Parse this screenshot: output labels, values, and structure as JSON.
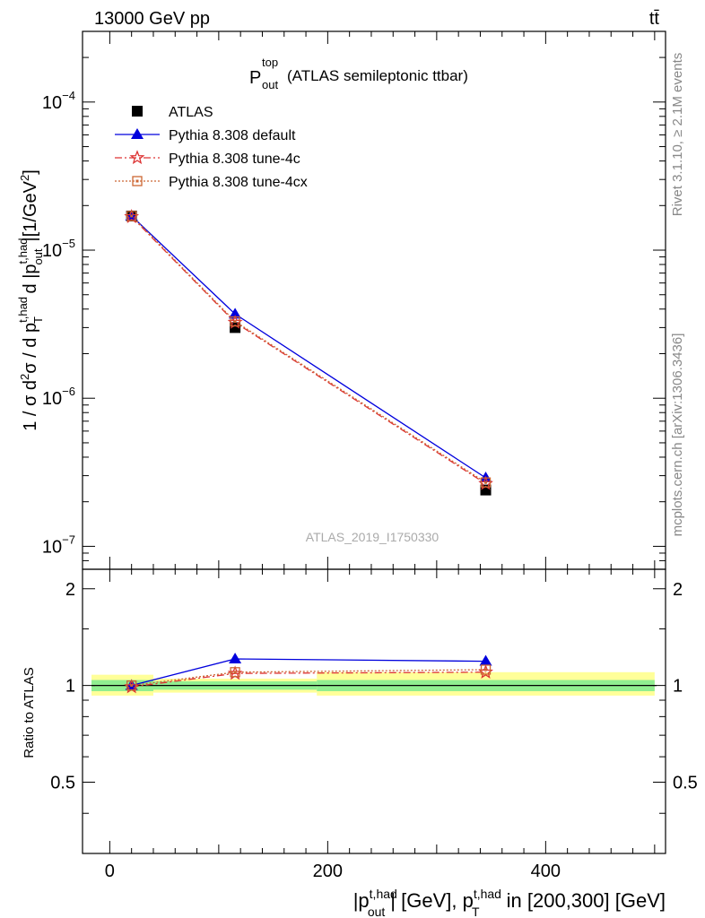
{
  "header": {
    "left": "13000 GeV pp",
    "right": "tt̄"
  },
  "plot_title": {
    "main": "P",
    "sup": "top",
    "sub": "out",
    "suffix": "(ATLAS semileptonic ttbar)"
  },
  "side_labels": {
    "rivet": "Rivet 3.1.10, ≥ 2.1M events",
    "mcplots": "mcplots.cern.ch [arXiv:1306.3436]"
  },
  "watermark": "ATLAS_2019_I1750330",
  "ratio_ylabel": "Ratio to ATLAS",
  "chart_data": {
    "type": "line",
    "ylabel": "1 / σ d²σ / d p_T^{t,had} d |p_out^{t,had}| [1/GeV²]",
    "xlabel": "|p_out^{t,had}| [GeV], p_T^{t,had} in [200,300] [GeV]",
    "xlim": [
      -25,
      510
    ],
    "ylim": [
      7e-08,
      0.0003
    ],
    "yscale": "log",
    "ratio_ylim": [
      0.3,
      2.3
    ],
    "x_ticks": [
      "0",
      "200",
      "400"
    ],
    "y_ticks": [
      "10^{-7}",
      "10^{-6}",
      "10^{-5}",
      "10^{-4}"
    ],
    "ratio_ticks": [
      "0.5",
      "1",
      "2"
    ],
    "legend_position": "top-left",
    "x": [
      20,
      115,
      345
    ],
    "series": [
      {
        "name": "ATLAS",
        "color": "#000000",
        "marker": "square",
        "values": [
          1.7e-05,
          3e-06,
          2.4e-07
        ]
      },
      {
        "name": "Pythia 8.308 default",
        "color": "#0000dd",
        "marker": "triangle",
        "values": [
          1.7e-05,
          3.7e-06,
          2.9e-07
        ]
      },
      {
        "name": "Pythia 8.308 tune-4c",
        "color": "#dd3333",
        "marker": "star",
        "values": [
          1.68e-05,
          3.25e-06,
          2.65e-07
        ]
      },
      {
        "name": "Pythia 8.308 tune-4cx",
        "color": "#cc6633",
        "marker": "open-square",
        "values": [
          1.7e-05,
          3.3e-06,
          2.7e-07
        ]
      }
    ],
    "ratio_series": [
      {
        "name": "Pythia 8.308 default",
        "values": [
          1.0,
          1.21,
          1.19
        ]
      },
      {
        "name": "Pythia 8.308 tune-4c",
        "values": [
          0.99,
          1.09,
          1.1
        ]
      },
      {
        "name": "Pythia 8.308 tune-4cx",
        "values": [
          1.0,
          1.1,
          1.12
        ]
      }
    ],
    "uncertainty_bands": [
      {
        "x_range": [
          -25,
          40
        ],
        "inner": [
          0.96,
          1.04
        ],
        "outer": [
          0.93,
          1.08
        ]
      },
      {
        "x_range": [
          40,
          190
        ],
        "inner": [
          0.97,
          1.03
        ],
        "outer": [
          0.95,
          1.05
        ]
      },
      {
        "x_range": [
          190,
          500
        ],
        "inner": [
          0.96,
          1.04
        ],
        "outer": [
          0.93,
          1.1
        ]
      }
    ]
  }
}
